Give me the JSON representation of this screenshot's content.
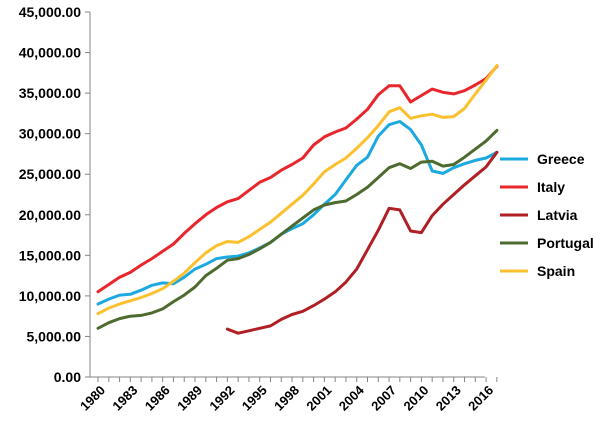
{
  "chart_data": {
    "type": "line",
    "title": "",
    "xlabel": "",
    "ylabel": "",
    "ylim": [
      0,
      45000
    ],
    "yticks": [
      0,
      5000,
      10000,
      15000,
      20000,
      25000,
      30000,
      35000,
      40000,
      45000
    ],
    "ytick_labels": [
      "0.00",
      "5,000.00",
      "10,000.00",
      "15,000.00",
      "20,000.00",
      "25,000.00",
      "30,000.00",
      "35,000.00",
      "40,000.00",
      "45,000.00"
    ],
    "x": [
      1980,
      1981,
      1982,
      1983,
      1984,
      1985,
      1986,
      1987,
      1988,
      1989,
      1990,
      1991,
      1992,
      1993,
      1994,
      1995,
      1996,
      1997,
      1998,
      1999,
      2000,
      2001,
      2002,
      2003,
      2004,
      2005,
      2006,
      2007,
      2008,
      2009,
      2010,
      2011,
      2012,
      2013,
      2014,
      2015,
      2016,
      2017
    ],
    "xtick_labels": [
      "1980",
      "1983",
      "1986",
      "1989",
      "1992",
      "1995",
      "1998",
      "2001",
      "2004",
      "2007",
      "2010",
      "2013",
      "2016"
    ],
    "grid": false,
    "legend_position": "right",
    "series": [
      {
        "name": "Greece",
        "color": "#1ba9df",
        "values": [
          9000,
          9600,
          10100,
          10200,
          10700,
          11300,
          11600,
          11500,
          12300,
          13300,
          13900,
          14600,
          14800,
          14900,
          15300,
          15900,
          16600,
          17600,
          18300,
          18900,
          20000,
          21300,
          22500,
          24300,
          26100,
          27100,
          29700,
          31100,
          31500,
          30500,
          28600,
          25400,
          25100,
          25800,
          26300,
          26700,
          27000,
          27700
        ]
      },
      {
        "name": "Italy",
        "color": "#e8262b",
        "values": [
          10500,
          11400,
          12300,
          12900,
          13800,
          14600,
          15500,
          16400,
          17700,
          18900,
          20000,
          20900,
          21600,
          22000,
          23000,
          24000,
          24600,
          25500,
          26200,
          27000,
          28600,
          29600,
          30200,
          30700,
          31800,
          33000,
          34800,
          35900,
          35900,
          33900,
          34700,
          35500,
          35100,
          34900,
          35300,
          36000,
          36800,
          38300
        ]
      },
      {
        "name": "Latvia",
        "color": "#b01f24",
        "values": [
          null,
          null,
          null,
          null,
          null,
          null,
          null,
          null,
          null,
          null,
          null,
          null,
          5900,
          5400,
          5700,
          6000,
          6300,
          7100,
          7700,
          8100,
          8800,
          9600,
          10500,
          11700,
          13300,
          15700,
          18100,
          20800,
          20600,
          18000,
          17800,
          19900,
          21300,
          22500,
          23700,
          24800,
          25900,
          27700
        ]
      },
      {
        "name": "Portugal",
        "color": "#4e6b2f",
        "values": [
          6000,
          6700,
          7200,
          7500,
          7600,
          7900,
          8400,
          9300,
          10100,
          11100,
          12500,
          13400,
          14400,
          14600,
          15100,
          15800,
          16600,
          17600,
          18600,
          19600,
          20600,
          21200,
          21500,
          21700,
          22500,
          23400,
          24600,
          25800,
          26300,
          25700,
          26500,
          26600,
          26000,
          26200,
          27100,
          28100,
          29100,
          30400
        ]
      },
      {
        "name": "Spain",
        "color": "#fbc02d",
        "values": [
          7800,
          8500,
          9000,
          9400,
          9800,
          10300,
          10900,
          11800,
          12800,
          14100,
          15300,
          16200,
          16700,
          16600,
          17300,
          18200,
          19100,
          20200,
          21300,
          22400,
          23800,
          25300,
          26200,
          27000,
          28200,
          29500,
          31000,
          32700,
          33200,
          31900,
          32200,
          32400,
          32000,
          32100,
          33100,
          34900,
          36600,
          38400
        ]
      }
    ]
  }
}
